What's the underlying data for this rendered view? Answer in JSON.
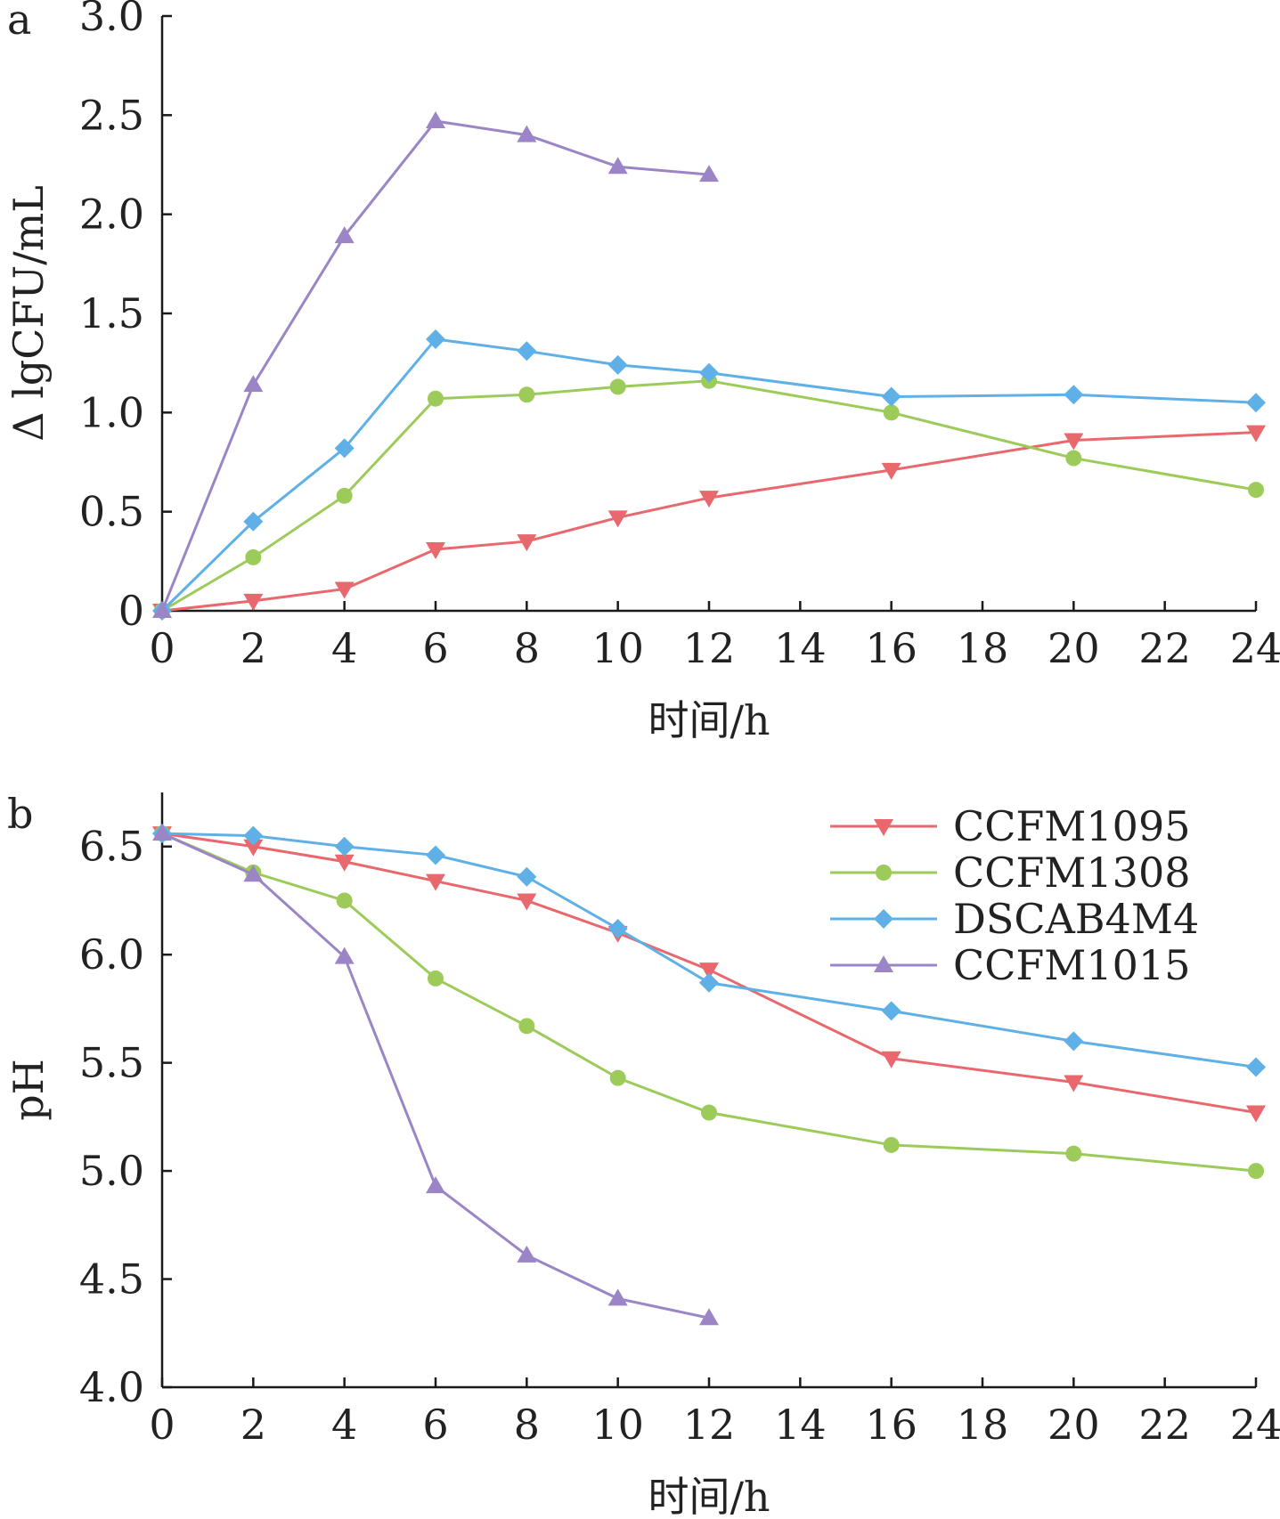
{
  "chart_data": [
    {
      "type": "line",
      "panel_label": "a",
      "xlabel": "时间/h",
      "ylabel": "Δ lgCFU/mL",
      "xlim": [
        0,
        24
      ],
      "ylim": [
        0,
        3.0
      ],
      "x_ticks": [
        0,
        2,
        4,
        6,
        8,
        10,
        12,
        14,
        16,
        18,
        20,
        22,
        24
      ],
      "x_tick_labels": [
        "0",
        "2",
        "4",
        "6",
        "8",
        "10",
        "12",
        "14",
        "16",
        "18",
        "20",
        "22",
        "24"
      ],
      "y_ticks": [
        0,
        0.5,
        1.0,
        1.5,
        2.0,
        2.5,
        3.0
      ],
      "y_tick_labels": [
        "0",
        "0.5",
        "1.0",
        "1.5",
        "2.0",
        "2.5",
        "3.0"
      ],
      "grid": false,
      "legend": "none",
      "series": [
        {
          "key": "CCFM1095",
          "color": "#e8686d",
          "marker": "triangle-down",
          "x": [
            0,
            2,
            4,
            6,
            8,
            10,
            12,
            16,
            20,
            24
          ],
          "y": [
            0,
            0.05,
            0.11,
            0.31,
            0.35,
            0.47,
            0.57,
            0.71,
            0.86,
            0.9
          ]
        },
        {
          "key": "CCFM1308",
          "color": "#9dcb5a",
          "marker": "circle",
          "x": [
            0,
            2,
            4,
            6,
            8,
            10,
            12,
            16,
            20,
            24
          ],
          "y": [
            0,
            0.27,
            0.58,
            1.07,
            1.09,
            1.13,
            1.16,
            1.0,
            0.77,
            0.61
          ]
        },
        {
          "key": "DSCAB4M4",
          "color": "#5fb0e6",
          "marker": "diamond",
          "x": [
            0,
            2,
            4,
            6,
            8,
            10,
            12,
            16,
            20,
            24
          ],
          "y": [
            0,
            0.45,
            0.82,
            1.37,
            1.31,
            1.24,
            1.2,
            1.08,
            1.09,
            1.05
          ]
        },
        {
          "key": "CCFM1015",
          "color": "#9b85c6",
          "marker": "triangle-up",
          "x": [
            0,
            2,
            4,
            6,
            8,
            10,
            12
          ],
          "y": [
            0,
            1.14,
            1.89,
            2.47,
            2.4,
            2.24,
            2.2
          ]
        }
      ]
    },
    {
      "type": "line",
      "panel_label": "b",
      "xlabel": "时间/h",
      "ylabel": "pH",
      "xlim": [
        0,
        24
      ],
      "ylim": [
        4.0,
        6.75
      ],
      "x_ticks": [
        0,
        2,
        4,
        6,
        8,
        10,
        12,
        14,
        16,
        18,
        20,
        22,
        24
      ],
      "x_tick_labels": [
        "0",
        "2",
        "4",
        "6",
        "8",
        "10",
        "12",
        "14",
        "16",
        "18",
        "20",
        "22",
        "24"
      ],
      "y_ticks": [
        4.0,
        4.5,
        5.0,
        5.5,
        6.0,
        6.5
      ],
      "y_tick_labels": [
        "4.0",
        "4.5",
        "5.0",
        "5.5",
        "6.0",
        "6.5"
      ],
      "grid": false,
      "legend": "top-right",
      "series": [
        {
          "name": "CCFM1095",
          "color": "#e8686d",
          "marker": "triangle-down",
          "x": [
            0,
            2,
            4,
            6,
            8,
            10,
            12,
            16,
            20,
            24
          ],
          "y": [
            6.56,
            6.5,
            6.43,
            6.34,
            6.25,
            6.1,
            5.93,
            5.52,
            5.41,
            5.27
          ]
        },
        {
          "name": "CCFM1308",
          "color": "#9dcb5a",
          "marker": "circle",
          "x": [
            0,
            2,
            4,
            6,
            8,
            10,
            12,
            16,
            20,
            24
          ],
          "y": [
            6.56,
            6.38,
            6.25,
            5.89,
            5.67,
            5.43,
            5.27,
            5.12,
            5.08,
            5.0
          ]
        },
        {
          "name": "DSCAB4M4",
          "color": "#5fb0e6",
          "marker": "diamond",
          "x": [
            0,
            2,
            4,
            6,
            8,
            10,
            12,
            16,
            20,
            24
          ],
          "y": [
            6.56,
            6.55,
            6.5,
            6.46,
            6.36,
            6.12,
            5.87,
            5.74,
            5.6,
            5.48
          ]
        },
        {
          "name": "CCFM1015",
          "color": "#9b85c6",
          "marker": "triangle-up",
          "x": [
            0,
            2,
            4,
            6,
            8,
            10,
            12
          ],
          "y": [
            6.56,
            6.37,
            5.99,
            4.93,
            4.61,
            4.41,
            4.32
          ]
        }
      ]
    }
  ]
}
